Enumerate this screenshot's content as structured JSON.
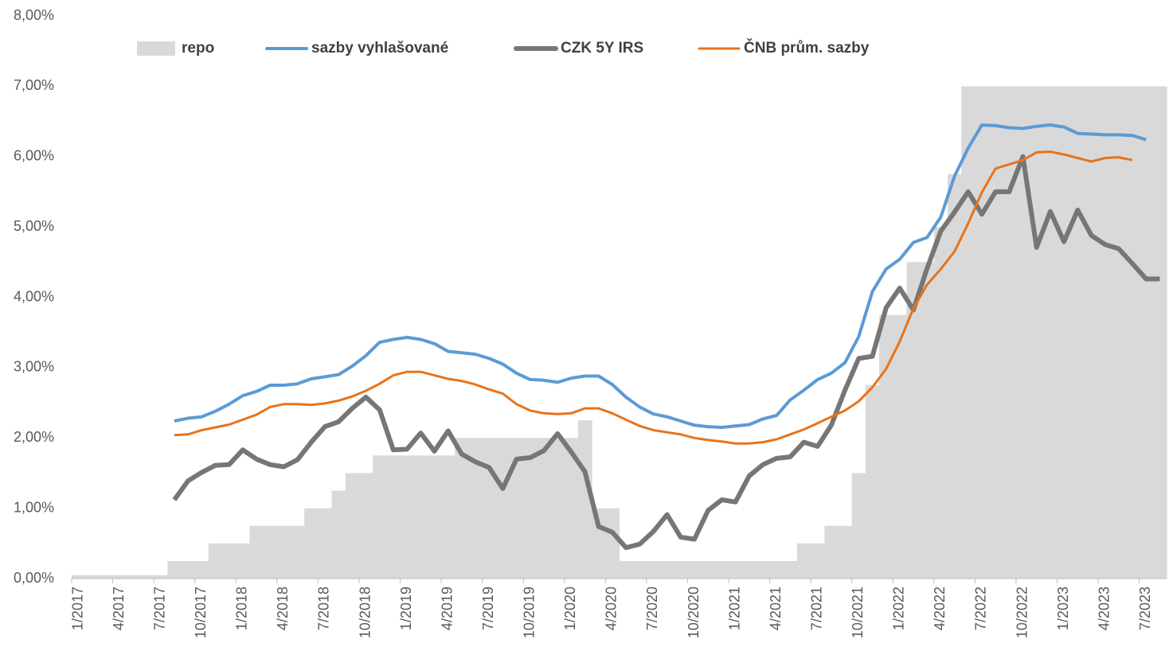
{
  "chart_data": {
    "type": "line",
    "categories": [
      "1/2017",
      null,
      null,
      "4/2017",
      null,
      null,
      "7/2017",
      null,
      null,
      "10/2017",
      null,
      null,
      "1/2018",
      null,
      null,
      "4/2018",
      null,
      null,
      "7/2018",
      null,
      null,
      "10/2018",
      null,
      null,
      "1/2019",
      null,
      null,
      "4/2019",
      null,
      null,
      "7/2019",
      null,
      null,
      "10/2019",
      null,
      null,
      "1/2020",
      null,
      null,
      "4/2020",
      null,
      null,
      "7/2020",
      null,
      null,
      "10/2020",
      null,
      null,
      "1/2021",
      null,
      null,
      "4/2021",
      null,
      null,
      "7/2021",
      null,
      null,
      "10/2021",
      null,
      null,
      "1/2022",
      null,
      null,
      "4/2022",
      null,
      null,
      "7/2022",
      null,
      null,
      "10/2022",
      null,
      null,
      "1/2023",
      null,
      null,
      "4/2023",
      null,
      null,
      "7/2023",
      null
    ],
    "series": [
      {
        "name": "repo",
        "type": "bar",
        "color": "#d9d9d9",
        "values": [
          0.05,
          0.05,
          0.05,
          0.05,
          0.05,
          0.05,
          0.05,
          0.25,
          0.25,
          0.25,
          0.5,
          0.5,
          0.5,
          0.75,
          0.75,
          0.75,
          0.75,
          1.0,
          1.0,
          1.25,
          1.5,
          1.5,
          1.75,
          1.75,
          1.75,
          1.75,
          1.75,
          1.75,
          2.0,
          2.0,
          2.0,
          2.0,
          2.0,
          2.0,
          2.0,
          2.0,
          2.0,
          2.25,
          1.0,
          1.0,
          0.25,
          0.25,
          0.25,
          0.25,
          0.25,
          0.25,
          0.25,
          0.25,
          0.25,
          0.25,
          0.25,
          0.25,
          0.25,
          0.5,
          0.5,
          0.75,
          0.75,
          1.5,
          2.75,
          3.75,
          3.75,
          4.5,
          4.5,
          5.0,
          5.75,
          7.0,
          7.0,
          7.0,
          7.0,
          7.0,
          7.0,
          7.0,
          7.0,
          7.0,
          7.0,
          7.0,
          7.0,
          7.0,
          7.0,
          7.0
        ]
      },
      {
        "name": "sazby vyhlašované",
        "type": "line",
        "color": "#5b9bd5",
        "values": [
          null,
          null,
          null,
          null,
          null,
          null,
          null,
          2.24,
          2.28,
          2.3,
          2.38,
          2.48,
          2.6,
          2.66,
          2.75,
          2.75,
          2.77,
          2.84,
          2.87,
          2.9,
          3.02,
          3.17,
          3.36,
          3.4,
          3.43,
          3.4,
          3.34,
          3.23,
          3.21,
          3.19,
          3.13,
          3.05,
          2.92,
          2.83,
          2.82,
          2.79,
          2.85,
          2.88,
          2.88,
          2.76,
          2.58,
          2.44,
          2.34,
          2.3,
          2.24,
          2.18,
          2.16,
          2.15,
          2.17,
          2.19,
          2.27,
          2.32,
          2.54,
          2.68,
          2.83,
          2.92,
          3.07,
          3.44,
          4.08,
          4.4,
          4.54,
          4.78,
          4.85,
          5.14,
          5.72,
          6.12,
          6.45,
          6.44,
          6.41,
          6.4,
          6.43,
          6.45,
          6.42,
          6.33,
          6.32,
          6.31,
          6.31,
          6.3,
          6.24,
          null
        ]
      },
      {
        "name": "CZK 5Y IRS",
        "type": "line",
        "color": "#767676",
        "values": [
          null,
          null,
          null,
          null,
          null,
          null,
          null,
          1.12,
          1.39,
          1.51,
          1.61,
          1.62,
          1.83,
          1.7,
          1.62,
          1.59,
          1.69,
          1.94,
          2.16,
          2.23,
          2.42,
          2.58,
          2.4,
          1.83,
          1.84,
          2.07,
          1.81,
          2.1,
          1.77,
          1.66,
          1.58,
          1.28,
          1.7,
          1.72,
          1.82,
          2.06,
          1.8,
          1.52,
          0.74,
          0.66,
          0.44,
          0.49,
          0.67,
          0.91,
          0.59,
          0.56,
          0.97,
          1.12,
          1.09,
          1.46,
          1.62,
          1.71,
          1.73,
          1.94,
          1.88,
          2.18,
          2.68,
          3.13,
          3.16,
          3.85,
          4.13,
          3.82,
          4.41,
          4.94,
          5.21,
          5.5,
          5.18,
          5.5,
          5.5,
          6.0,
          4.71,
          5.22,
          4.79,
          5.24,
          4.88,
          4.75,
          4.69,
          4.48,
          4.26,
          4.26
        ]
      },
      {
        "name": "ČNB prům. sazby",
        "type": "line",
        "color": "#e8731a",
        "values": [
          null,
          null,
          null,
          null,
          null,
          null,
          null,
          2.04,
          2.05,
          2.11,
          2.15,
          2.19,
          2.26,
          2.33,
          2.44,
          2.48,
          2.48,
          2.47,
          2.49,
          2.53,
          2.59,
          2.67,
          2.77,
          2.89,
          2.94,
          2.94,
          2.89,
          2.84,
          2.81,
          2.76,
          2.69,
          2.63,
          2.48,
          2.39,
          2.35,
          2.34,
          2.35,
          2.42,
          2.42,
          2.35,
          2.26,
          2.17,
          2.11,
          2.08,
          2.05,
          2.0,
          1.97,
          1.95,
          1.92,
          1.92,
          1.94,
          1.98,
          2.05,
          2.12,
          2.21,
          2.3,
          2.39,
          2.52,
          2.72,
          2.98,
          3.37,
          3.84,
          4.18,
          4.4,
          4.65,
          5.05,
          5.49,
          5.83,
          5.89,
          5.95,
          6.06,
          6.07,
          6.03,
          5.98,
          5.93,
          5.98,
          5.99,
          5.95,
          null,
          null
        ]
      }
    ],
    "ylim": [
      0,
      8
    ],
    "yticks": [
      {
        "value": 0,
        "label": "0,00%"
      },
      {
        "value": 1,
        "label": "1,00%"
      },
      {
        "value": 2,
        "label": "2,00%"
      },
      {
        "value": 3,
        "label": "3,00%"
      },
      {
        "value": 4,
        "label": "4,00%"
      },
      {
        "value": 5,
        "label": "5,00%"
      },
      {
        "value": 6,
        "label": "6,00%"
      },
      {
        "value": 7,
        "label": "7,00%"
      },
      {
        "value": 8,
        "label": "8,00%"
      }
    ],
    "legend": "top"
  }
}
